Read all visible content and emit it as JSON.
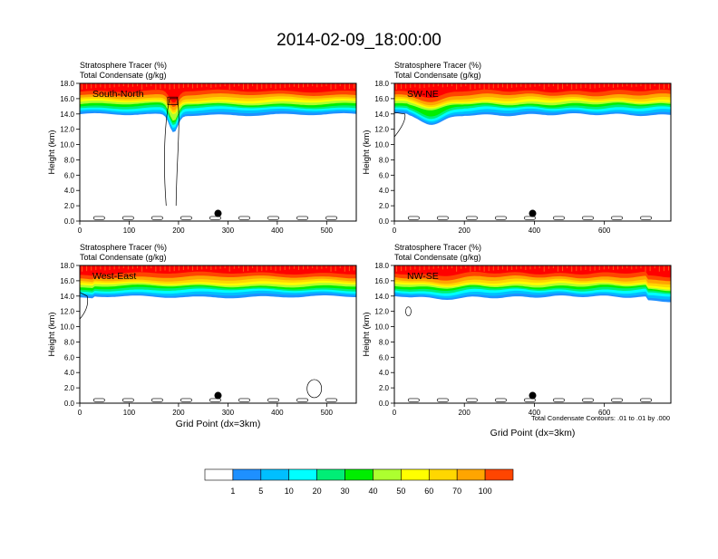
{
  "page_title": "2014-02-09_18:00:00",
  "palette": [
    "#ffffff",
    "#1e90ff",
    "#00bfff",
    "#00ffff",
    "#00ee76",
    "#00ee00",
    "#adff2f",
    "#ffff00",
    "#ffd700",
    "#ffa500",
    "#ff4500",
    "#ff0000"
  ],
  "colorbar": {
    "labels": [
      "1",
      "5",
      "10",
      "20",
      "30",
      "40",
      "50",
      "60",
      "70",
      "100"
    ]
  },
  "footnote": "Total Condensate Contours: .01 to .01 by .000",
  "chart_data": [
    {
      "type": "heatmap",
      "panel_label": "South-North",
      "title_line1": "Stratosphere Tracer   (%)",
      "title_line2": "Total Condensate   (g/kg)",
      "ylabel": "Height (km)",
      "xlabel": "",
      "xlim": [
        0,
        560
      ],
      "ylim": [
        0,
        18
      ],
      "xticks": [
        "0",
        "100",
        "200",
        "300",
        "400",
        "500"
      ],
      "yticks": [
        "0.0",
        "2.0",
        "4.0",
        "6.0",
        "8.0",
        "10.0",
        "12.0",
        "14.0",
        "16.0",
        "18.0"
      ],
      "marker": {
        "x": 280,
        "y": 1.0
      }
    },
    {
      "type": "heatmap",
      "panel_label": "SW-NE",
      "title_line1": "Stratosphere Tracer   (%)",
      "title_line2": "Total Condensate   (g/kg)",
      "ylabel": "Height (km)",
      "xlabel": "",
      "xlim": [
        0,
        790
      ],
      "ylim": [
        0,
        18
      ],
      "xticks": [
        "0",
        "200",
        "400",
        "600"
      ],
      "yticks": [
        "0.0",
        "2.0",
        "4.0",
        "6.0",
        "8.0",
        "10.0",
        "12.0",
        "14.0",
        "16.0",
        "18.0"
      ],
      "marker": {
        "x": 395,
        "y": 1.0
      }
    },
    {
      "type": "heatmap",
      "panel_label": "West-East",
      "title_line1": "Stratosphere Tracer   (%)",
      "title_line2": "Total Condensate   (g/kg)",
      "ylabel": "Height (km)",
      "xlabel": "Grid Point (dx=3km)",
      "xlim": [
        0,
        560
      ],
      "ylim": [
        0,
        18
      ],
      "xticks": [
        "0",
        "100",
        "200",
        "300",
        "400",
        "500"
      ],
      "yticks": [
        "0.0",
        "2.0",
        "4.0",
        "6.0",
        "8.0",
        "10.0",
        "12.0",
        "14.0",
        "16.0",
        "18.0"
      ],
      "marker": {
        "x": 280,
        "y": 1.0
      }
    },
    {
      "type": "heatmap",
      "panel_label": "NW-SE",
      "title_line1": "Stratosphere Tracer   (%)",
      "title_line2": "Total Condensate   (g/kg)",
      "ylabel": "Height (km)",
      "xlabel": "Grid Point (dx=3km)",
      "xlim": [
        0,
        790
      ],
      "ylim": [
        0,
        18
      ],
      "xticks": [
        "0",
        "200",
        "400",
        "600"
      ],
      "yticks": [
        "0.0",
        "2.0",
        "4.0",
        "6.0",
        "8.0",
        "10.0",
        "12.0",
        "14.0",
        "16.0",
        "18.0"
      ],
      "marker": {
        "x": 395,
        "y": 1.0
      }
    }
  ]
}
